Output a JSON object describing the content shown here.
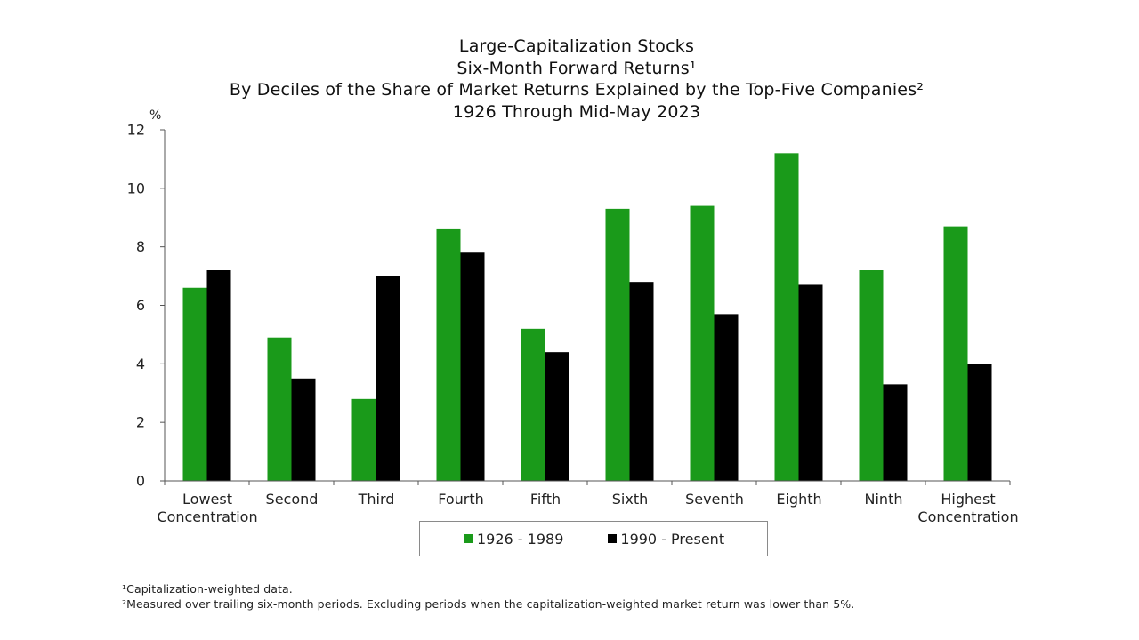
{
  "chart_data": {
    "type": "bar",
    "title_lines": [
      "Large-Capitalization Stocks",
      "Six-Month Forward Returns¹",
      "By Deciles of the Share of Market Returns Explained by the Top-Five Companies²",
      "1926 Through Mid-May 2023"
    ],
    "ylabel": "%",
    "ylim": [
      0,
      12
    ],
    "yticks": [
      0,
      2,
      4,
      6,
      8,
      10,
      12
    ],
    "grid": false,
    "categories": [
      [
        "Lowest",
        "Concentration"
      ],
      [
        "Second"
      ],
      [
        "Third"
      ],
      [
        "Fourth"
      ],
      [
        "Fifth"
      ],
      [
        "Sixth"
      ],
      [
        "Seventh"
      ],
      [
        "Eighth"
      ],
      [
        "Ninth"
      ],
      [
        "Highest",
        "Concentration"
      ]
    ],
    "series": [
      {
        "name": "1926 - 1989",
        "color": "#1a9a1a",
        "values": [
          6.6,
          4.9,
          2.8,
          8.6,
          5.2,
          9.3,
          9.4,
          11.2,
          7.2,
          8.7
        ]
      },
      {
        "name": "1990 - Present",
        "color": "#000000",
        "values": [
          7.2,
          3.5,
          7.0,
          7.8,
          4.4,
          6.8,
          5.7,
          6.7,
          3.3,
          4.0
        ]
      }
    ],
    "legend_position": "bottom-center"
  },
  "footnotes": [
    "¹Capitalization-weighted data.",
    "²Measured over trailing six-month periods. Excluding periods when the capitalization-weighted market return was lower than 5%."
  ]
}
